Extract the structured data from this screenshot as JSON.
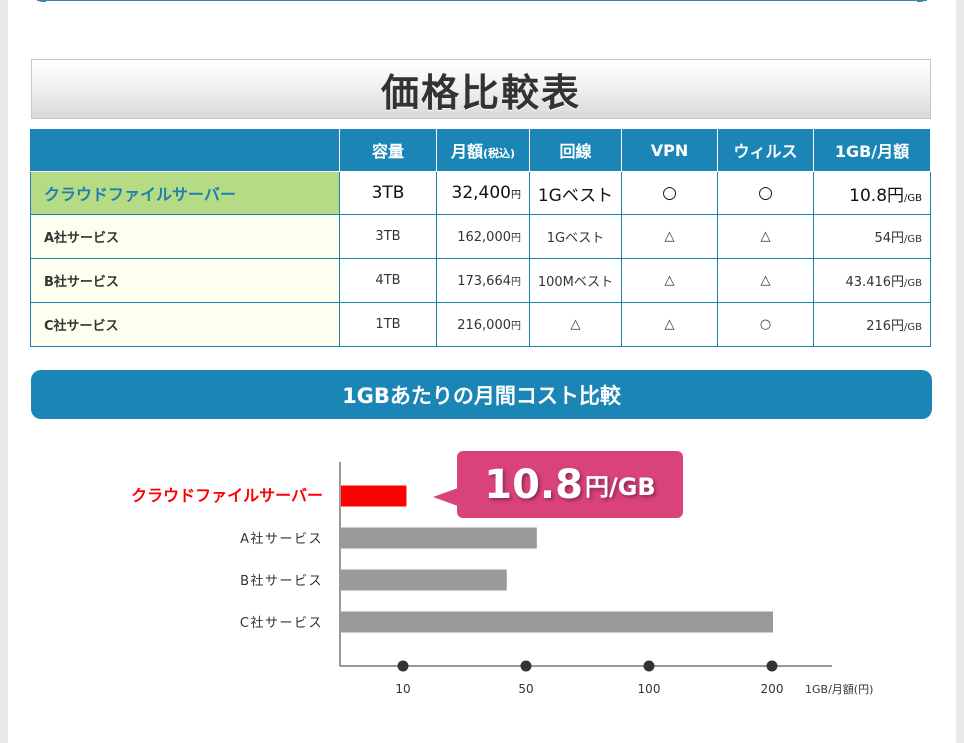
{
  "title": "価格比較表",
  "table": {
    "headers": [
      "",
      "容量",
      "月額",
      "(税込)",
      "回線",
      "VPN",
      "ウィルス",
      "1GB/月額"
    ],
    "rows": [
      {
        "name": "クラウドファイルサーバー",
        "capacity": "3TB",
        "price": "32,400",
        "price_unit": "円",
        "line": "1Gベスト",
        "vpn": "○",
        "virus": "○",
        "per_gb": "10.8円",
        "per_gb_unit": "/GB"
      },
      {
        "name": "A社サービス",
        "capacity": "3TB",
        "price": "162,000",
        "price_unit": "円",
        "line": "1Gベスト",
        "vpn": "△",
        "virus": "△",
        "per_gb": "54円",
        "per_gb_unit": "/GB"
      },
      {
        "name": "B社サービス",
        "capacity": "4TB",
        "price": "173,664",
        "price_unit": "円",
        "line": "100Mベスト",
        "vpn": "△",
        "virus": "△",
        "per_gb": "43.416円",
        "per_gb_unit": "/GB"
      },
      {
        "name": "C社サービス",
        "capacity": "1TB",
        "price": "216,000",
        "price_unit": "円",
        "line": "△",
        "vpn": "△",
        "virus": "○",
        "per_gb": "216円",
        "per_gb_unit": "/GB"
      }
    ]
  },
  "section_title": "1GBあたりの月間コスト比較",
  "callout": {
    "value": "10.8",
    "unit": "円/GB"
  },
  "colors": {
    "accent": "#1b86b5",
    "highlight_bar": "#ff0000",
    "bar": "#999999",
    "callout": "#d9427a",
    "highlight_name": "#b5dc85"
  },
  "chart_data": {
    "type": "bar",
    "orientation": "horizontal",
    "categories": [
      "クラウドファイルサーバー",
      "A社サービス",
      "B社サービス",
      "C社サービス"
    ],
    "values": [
      10.8,
      54,
      43.416,
      216
    ],
    "highlight_category": "クラウドファイルサーバー",
    "xlabel": "1GB/月額(円)",
    "xticks": [
      10,
      50,
      100,
      200
    ],
    "grid": false
  }
}
